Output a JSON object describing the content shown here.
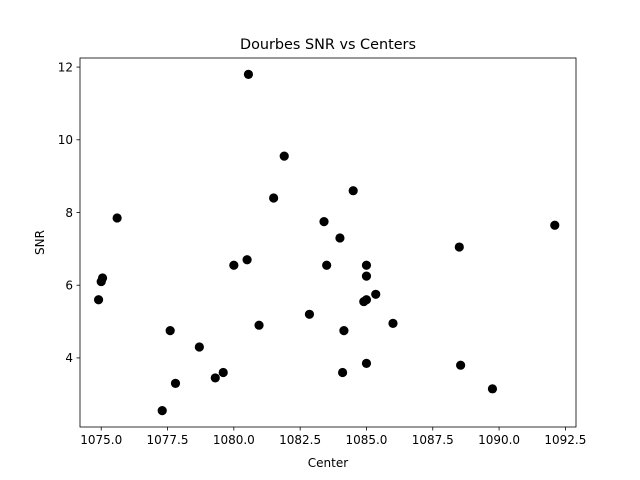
{
  "chart_data": {
    "type": "scatter",
    "title": "Dourbes SNR vs Centers",
    "xlabel": "Center",
    "ylabel": "SNR",
    "xlim": [
      1074.2,
      1092.9
    ],
    "ylim": [
      2.1,
      12.25
    ],
    "xticks": [
      1075.0,
      1077.5,
      1080.0,
      1082.5,
      1085.0,
      1087.5,
      1090.0,
      1092.5
    ],
    "xtick_labels": [
      "1075.0",
      "1077.5",
      "1080.0",
      "1082.5",
      "1085.0",
      "1087.5",
      "1090.0",
      "1092.5"
    ],
    "yticks": [
      4,
      6,
      8,
      10,
      12
    ],
    "ytick_labels": [
      "4",
      "6",
      "8",
      "10",
      "12"
    ],
    "grid": false,
    "marker_color": "#000000",
    "points": [
      {
        "x": 1074.9,
        "y": 5.6
      },
      {
        "x": 1075.0,
        "y": 6.1
      },
      {
        "x": 1075.05,
        "y": 6.2
      },
      {
        "x": 1075.6,
        "y": 7.85
      },
      {
        "x": 1077.3,
        "y": 2.55
      },
      {
        "x": 1077.6,
        "y": 4.75
      },
      {
        "x": 1077.8,
        "y": 3.3
      },
      {
        "x": 1078.7,
        "y": 4.3
      },
      {
        "x": 1079.3,
        "y": 3.45
      },
      {
        "x": 1079.6,
        "y": 3.6
      },
      {
        "x": 1080.0,
        "y": 6.55
      },
      {
        "x": 1080.5,
        "y": 6.7
      },
      {
        "x": 1080.55,
        "y": 11.8
      },
      {
        "x": 1080.95,
        "y": 4.9
      },
      {
        "x": 1081.5,
        "y": 8.4
      },
      {
        "x": 1081.9,
        "y": 9.55
      },
      {
        "x": 1082.85,
        "y": 5.2
      },
      {
        "x": 1083.4,
        "y": 7.75
      },
      {
        "x": 1083.5,
        "y": 6.55
      },
      {
        "x": 1084.0,
        "y": 7.3
      },
      {
        "x": 1084.1,
        "y": 3.6
      },
      {
        "x": 1084.15,
        "y": 4.75
      },
      {
        "x": 1084.5,
        "y": 8.6
      },
      {
        "x": 1084.9,
        "y": 5.55
      },
      {
        "x": 1085.0,
        "y": 5.6
      },
      {
        "x": 1085.0,
        "y": 6.25
      },
      {
        "x": 1085.0,
        "y": 6.55
      },
      {
        "x": 1085.0,
        "y": 3.85
      },
      {
        "x": 1085.35,
        "y": 5.75
      },
      {
        "x": 1086.0,
        "y": 4.95
      },
      {
        "x": 1088.5,
        "y": 7.05
      },
      {
        "x": 1088.55,
        "y": 3.8
      },
      {
        "x": 1089.75,
        "y": 3.15
      },
      {
        "x": 1092.1,
        "y": 7.65
      }
    ]
  }
}
